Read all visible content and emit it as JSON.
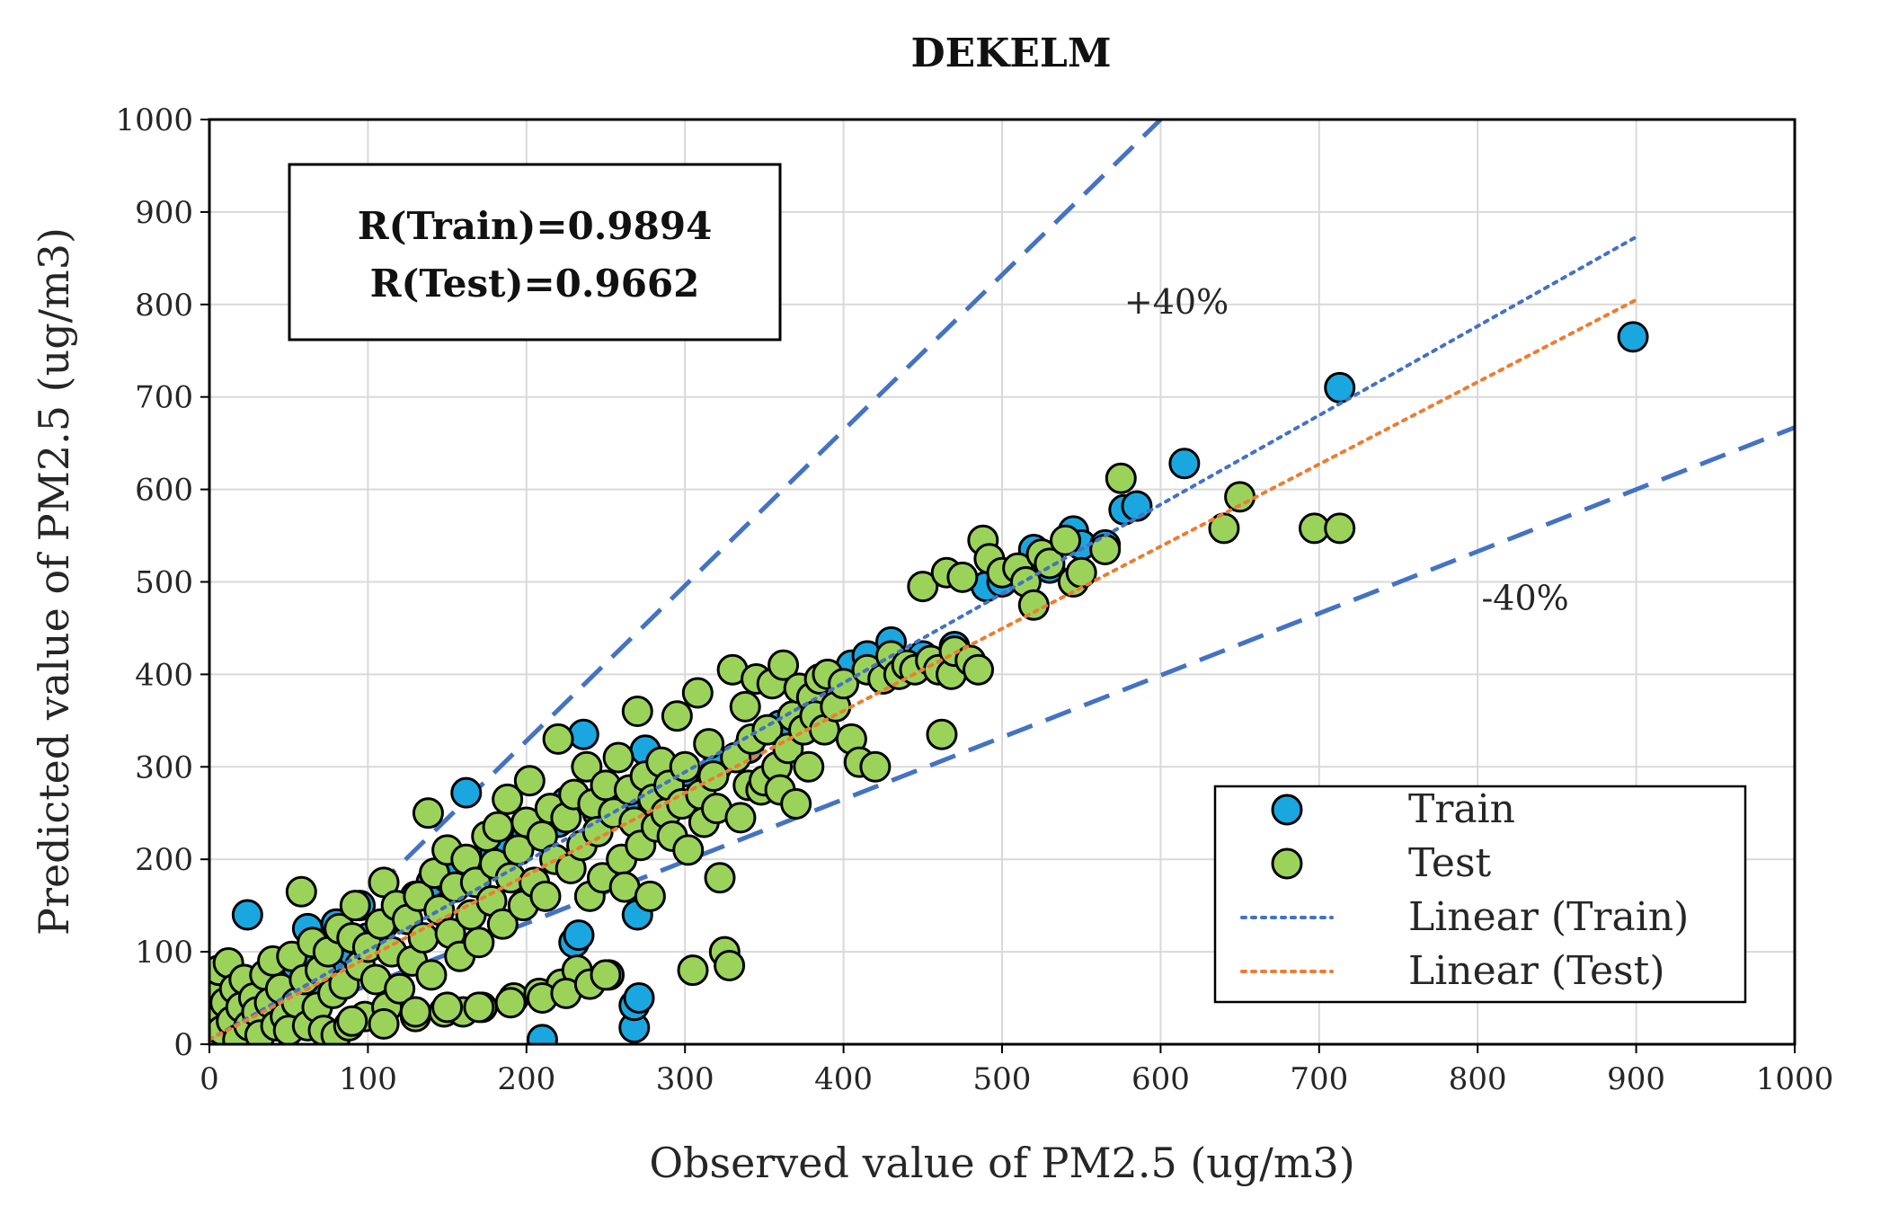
{
  "chart_data": {
    "type": "scatter",
    "title": "DEKELM",
    "xlabel": "Observed value of PM2.5 (ug/m3)",
    "ylabel": "Predicted value of PM2.5 (ug/m3)",
    "xlim": [
      0,
      1000
    ],
    "ylim": [
      0,
      1000
    ],
    "xticks": [
      "0",
      "100",
      "200",
      "300",
      "400",
      "500",
      "600",
      "700",
      "800",
      "900",
      "1000"
    ],
    "yticks": [
      "0",
      "100",
      "200",
      "300",
      "400",
      "500",
      "600",
      "700",
      "800",
      "900",
      "1000"
    ],
    "grid": true,
    "legend_position": "bottom-right",
    "stats": [
      "R(Train)=0.9894",
      "R(Test)=0.9662"
    ],
    "annotations": [
      {
        "text": "+40%",
        "x": 610,
        "y": 790
      },
      {
        "text": "-40%",
        "x": 830,
        "y": 470
      }
    ],
    "legend": [
      {
        "label": "Train",
        "kind": "marker",
        "color": "#1aa7e0"
      },
      {
        "label": "Test",
        "kind": "marker",
        "color": "#9bd35a"
      },
      {
        "label": "Linear (Train)",
        "kind": "line",
        "color": "#4472c4"
      },
      {
        "label": "Linear (Test)",
        "kind": "line",
        "color": "#ed7d31"
      }
    ],
    "bound_lines": [
      {
        "label": "+40%",
        "color": "#4472c4",
        "x": [
          0,
          600
        ],
        "y": [
          0,
          1000
        ]
      },
      {
        "label": "-40%",
        "color": "#4472c4",
        "x": [
          0,
          1000
        ],
        "y": [
          0,
          667
        ]
      }
    ],
    "trend_lines": [
      {
        "name": "Linear (Train)",
        "color": "#4472c4",
        "x": [
          0,
          900
        ],
        "y": [
          5,
          873
        ]
      },
      {
        "name": "Linear (Test)",
        "color": "#ed7d31",
        "x": [
          0,
          900
        ],
        "y": [
          5,
          805
        ]
      }
    ],
    "series": [
      {
        "name": "Train",
        "color": "#1aa7e0",
        "points": [
          [
            5,
            10
          ],
          [
            8,
            20
          ],
          [
            10,
            5
          ],
          [
            12,
            30
          ],
          [
            15,
            45
          ],
          [
            18,
            15
          ],
          [
            20,
            55
          ],
          [
            22,
            35
          ],
          [
            24,
            140
          ],
          [
            25,
            60
          ],
          [
            30,
            25
          ],
          [
            35,
            50
          ],
          [
            40,
            40
          ],
          [
            45,
            65
          ],
          [
            50,
            30
          ],
          [
            55,
            85
          ],
          [
            60,
            70
          ],
          [
            62,
            125
          ],
          [
            65,
            95
          ],
          [
            70,
            60
          ],
          [
            75,
            110
          ],
          [
            80,
            130
          ],
          [
            85,
            75
          ],
          [
            90,
            100
          ],
          [
            95,
            150
          ],
          [
            100,
            115
          ],
          [
            110,
            130
          ],
          [
            120,
            140
          ],
          [
            130,
            160
          ],
          [
            140,
            175
          ],
          [
            150,
            180
          ],
          [
            162,
            272
          ],
          [
            170,
            190
          ],
          [
            180,
            205
          ],
          [
            190,
            215
          ],
          [
            200,
            225
          ],
          [
            210,
            5
          ],
          [
            220,
            240
          ],
          [
            230,
            110
          ],
          [
            233,
            118
          ],
          [
            225,
            262
          ],
          [
            236,
            335
          ],
          [
            245,
            250
          ],
          [
            255,
            270
          ],
          [
            262,
            258
          ],
          [
            268,
            18
          ],
          [
            268,
            42
          ],
          [
            270,
            140
          ],
          [
            271,
            50
          ],
          [
            275,
            318
          ],
          [
            285,
            300
          ],
          [
            300,
            295
          ],
          [
            320,
            300
          ],
          [
            340,
            320
          ],
          [
            360,
            345
          ],
          [
            380,
            380
          ],
          [
            400,
            395
          ],
          [
            405,
            410
          ],
          [
            415,
            420
          ],
          [
            430,
            435
          ],
          [
            440,
            410
          ],
          [
            450,
            420
          ],
          [
            470,
            430
          ],
          [
            490,
            495
          ],
          [
            500,
            500
          ],
          [
            520,
            535
          ],
          [
            530,
            515
          ],
          [
            545,
            555
          ],
          [
            550,
            540
          ],
          [
            565,
            540
          ],
          [
            577,
            578
          ],
          [
            585,
            582
          ],
          [
            615,
            628
          ],
          [
            713,
            710
          ],
          [
            898,
            765
          ]
        ]
      },
      {
        "name": "Test",
        "color": "#9bd35a",
        "points": [
          [
            2,
            10
          ],
          [
            4,
            55
          ],
          [
            5,
            30
          ],
          [
            6,
            80
          ],
          [
            8,
            15
          ],
          [
            10,
            45
          ],
          [
            12,
            88
          ],
          [
            14,
            25
          ],
          [
            16,
            60
          ],
          [
            18,
            5
          ],
          [
            20,
            40
          ],
          [
            22,
            70
          ],
          [
            25,
            20
          ],
          [
            28,
            50
          ],
          [
            30,
            35
          ],
          [
            32,
            10
          ],
          [
            35,
            75
          ],
          [
            38,
            45
          ],
          [
            40,
            90
          ],
          [
            42,
            20
          ],
          [
            45,
            60
          ],
          [
            48,
            30
          ],
          [
            50,
            15
          ],
          [
            52,
            95
          ],
          [
            55,
            45
          ],
          [
            58,
            165
          ],
          [
            60,
            70
          ],
          [
            62,
            20
          ],
          [
            65,
            110
          ],
          [
            68,
            40
          ],
          [
            70,
            80
          ],
          [
            72,
            15
          ],
          [
            75,
            100
          ],
          [
            78,
            55
          ],
          [
            80,
            10
          ],
          [
            82,
            125
          ],
          [
            85,
            65
          ],
          [
            88,
            20
          ],
          [
            90,
            115
          ],
          [
            92,
            150
          ],
          [
            95,
            85
          ],
          [
            98,
            30
          ],
          [
            100,
            105
          ],
          [
            105,
            70
          ],
          [
            108,
            130
          ],
          [
            110,
            175
          ],
          [
            112,
            40
          ],
          [
            115,
            100
          ],
          [
            118,
            150
          ],
          [
            120,
            60
          ],
          [
            125,
            135
          ],
          [
            128,
            90
          ],
          [
            130,
            30
          ],
          [
            132,
            160
          ],
          [
            135,
            115
          ],
          [
            138,
            250
          ],
          [
            140,
            75
          ],
          [
            142,
            185
          ],
          [
            145,
            145
          ],
          [
            148,
            35
          ],
          [
            150,
            210
          ],
          [
            152,
            120
          ],
          [
            155,
            170
          ],
          [
            158,
            95
          ],
          [
            160,
            35
          ],
          [
            162,
            200
          ],
          [
            165,
            140
          ],
          [
            168,
            175
          ],
          [
            170,
            110
          ],
          [
            172,
            40
          ],
          [
            175,
            225
          ],
          [
            178,
            155
          ],
          [
            180,
            195
          ],
          [
            182,
            235
          ],
          [
            185,
            130
          ],
          [
            188,
            265
          ],
          [
            190,
            180
          ],
          [
            192,
            50
          ],
          [
            195,
            210
          ],
          [
            198,
            150
          ],
          [
            200,
            240
          ],
          [
            202,
            285
          ],
          [
            205,
            175
          ],
          [
            208,
            55
          ],
          [
            210,
            225
          ],
          [
            212,
            160
          ],
          [
            215,
            255
          ],
          [
            218,
            200
          ],
          [
            220,
            330
          ],
          [
            222,
            65
          ],
          [
            225,
            245
          ],
          [
            228,
            190
          ],
          [
            230,
            270
          ],
          [
            232,
            80
          ],
          [
            235,
            215
          ],
          [
            238,
            300
          ],
          [
            240,
            160
          ],
          [
            242,
            260
          ],
          [
            245,
            230
          ],
          [
            248,
            180
          ],
          [
            250,
            280
          ],
          [
            252,
            75
          ],
          [
            255,
            250
          ],
          [
            258,
            310
          ],
          [
            260,
            200
          ],
          [
            262,
            170
          ],
          [
            265,
            275
          ],
          [
            268,
            240
          ],
          [
            270,
            360
          ],
          [
            272,
            215
          ],
          [
            275,
            290
          ],
          [
            278,
            160
          ],
          [
            280,
            265
          ],
          [
            282,
            235
          ],
          [
            285,
            305
          ],
          [
            288,
            250
          ],
          [
            290,
            280
          ],
          [
            292,
            225
          ],
          [
            295,
            355
          ],
          [
            298,
            260
          ],
          [
            300,
            300
          ],
          [
            302,
            210
          ],
          [
            305,
            80
          ],
          [
            308,
            380
          ],
          [
            310,
            270
          ],
          [
            312,
            240
          ],
          [
            315,
            325
          ],
          [
            318,
            290
          ],
          [
            320,
            255
          ],
          [
            322,
            180
          ],
          [
            325,
            100
          ],
          [
            328,
            85
          ],
          [
            330,
            405
          ],
          [
            332,
            310
          ],
          [
            335,
            245
          ],
          [
            338,
            365
          ],
          [
            340,
            280
          ],
          [
            342,
            330
          ],
          [
            345,
            395
          ],
          [
            348,
            275
          ],
          [
            350,
            285
          ],
          [
            352,
            340
          ],
          [
            355,
            390
          ],
          [
            358,
            300
          ],
          [
            360,
            275
          ],
          [
            362,
            410
          ],
          [
            365,
            320
          ],
          [
            368,
            355
          ],
          [
            370,
            260
          ],
          [
            372,
            385
          ],
          [
            375,
            340
          ],
          [
            378,
            300
          ],
          [
            380,
            375
          ],
          [
            382,
            355
          ],
          [
            385,
            395
          ],
          [
            388,
            340
          ],
          [
            390,
            400
          ],
          [
            395,
            365
          ],
          [
            400,
            390
          ],
          [
            405,
            330
          ],
          [
            410,
            305
          ],
          [
            415,
            405
          ],
          [
            420,
            300
          ],
          [
            425,
            395
          ],
          [
            430,
            420
          ],
          [
            435,
            400
          ],
          [
            440,
            410
          ],
          [
            445,
            405
          ],
          [
            450,
            495
          ],
          [
            455,
            415
          ],
          [
            460,
            405
          ],
          [
            462,
            335
          ],
          [
            465,
            510
          ],
          [
            468,
            400
          ],
          [
            470,
            425
          ],
          [
            475,
            505
          ],
          [
            480,
            415
          ],
          [
            485,
            405
          ],
          [
            488,
            545
          ],
          [
            492,
            525
          ],
          [
            500,
            510
          ],
          [
            510,
            515
          ],
          [
            515,
            500
          ],
          [
            520,
            475
          ],
          [
            525,
            530
          ],
          [
            530,
            520
          ],
          [
            540,
            545
          ],
          [
            545,
            500
          ],
          [
            550,
            510
          ],
          [
            565,
            535
          ],
          [
            575,
            612
          ],
          [
            640,
            558
          ],
          [
            650,
            592
          ],
          [
            697,
            558
          ],
          [
            713,
            558
          ],
          [
            90,
            25
          ],
          [
            110,
            22
          ],
          [
            130,
            35
          ],
          [
            150,
            40
          ],
          [
            170,
            40
          ],
          [
            190,
            45
          ],
          [
            210,
            50
          ],
          [
            225,
            55
          ],
          [
            240,
            65
          ],
          [
            250,
            75
          ]
        ]
      }
    ]
  }
}
